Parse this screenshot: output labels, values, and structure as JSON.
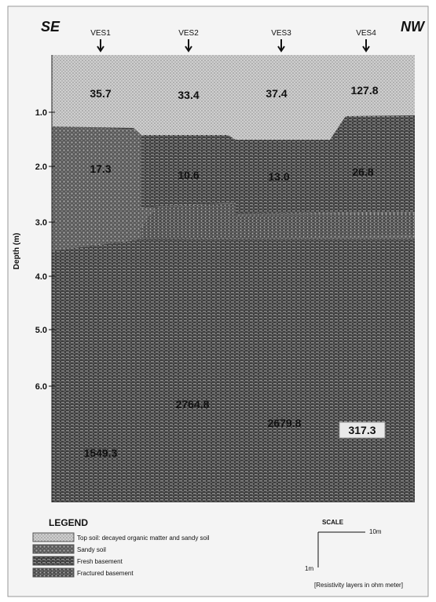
{
  "header": {
    "left": "SE",
    "right": "NW"
  },
  "stations": [
    "VES1",
    "VES2",
    "VES3",
    "VES4"
  ],
  "topsoil_values": [
    "35.7",
    "33.4",
    "37.4",
    "127.8"
  ],
  "sandy_values": [
    "17.3",
    "10.6",
    "13.0",
    "26.8"
  ],
  "basement_values": [
    "1549.3",
    "2764.8",
    "2679.8",
    "317.3"
  ],
  "depth_axis": {
    "label": "Depth (m)",
    "ticks": [
      "1.0",
      "2.0",
      "3.0",
      "4.0",
      "5.0",
      "6.0"
    ]
  },
  "legend": {
    "title": "LEGEND",
    "items": [
      "Top soil: decayed organic matter and sandy soil",
      "Sandy soil",
      "Fresh basement",
      "Fractured basement"
    ]
  },
  "scale": {
    "title": "SCALE",
    "horizontal": "10m",
    "vertical": "1m",
    "note": "[Resistivity layers in ohm meter]"
  }
}
